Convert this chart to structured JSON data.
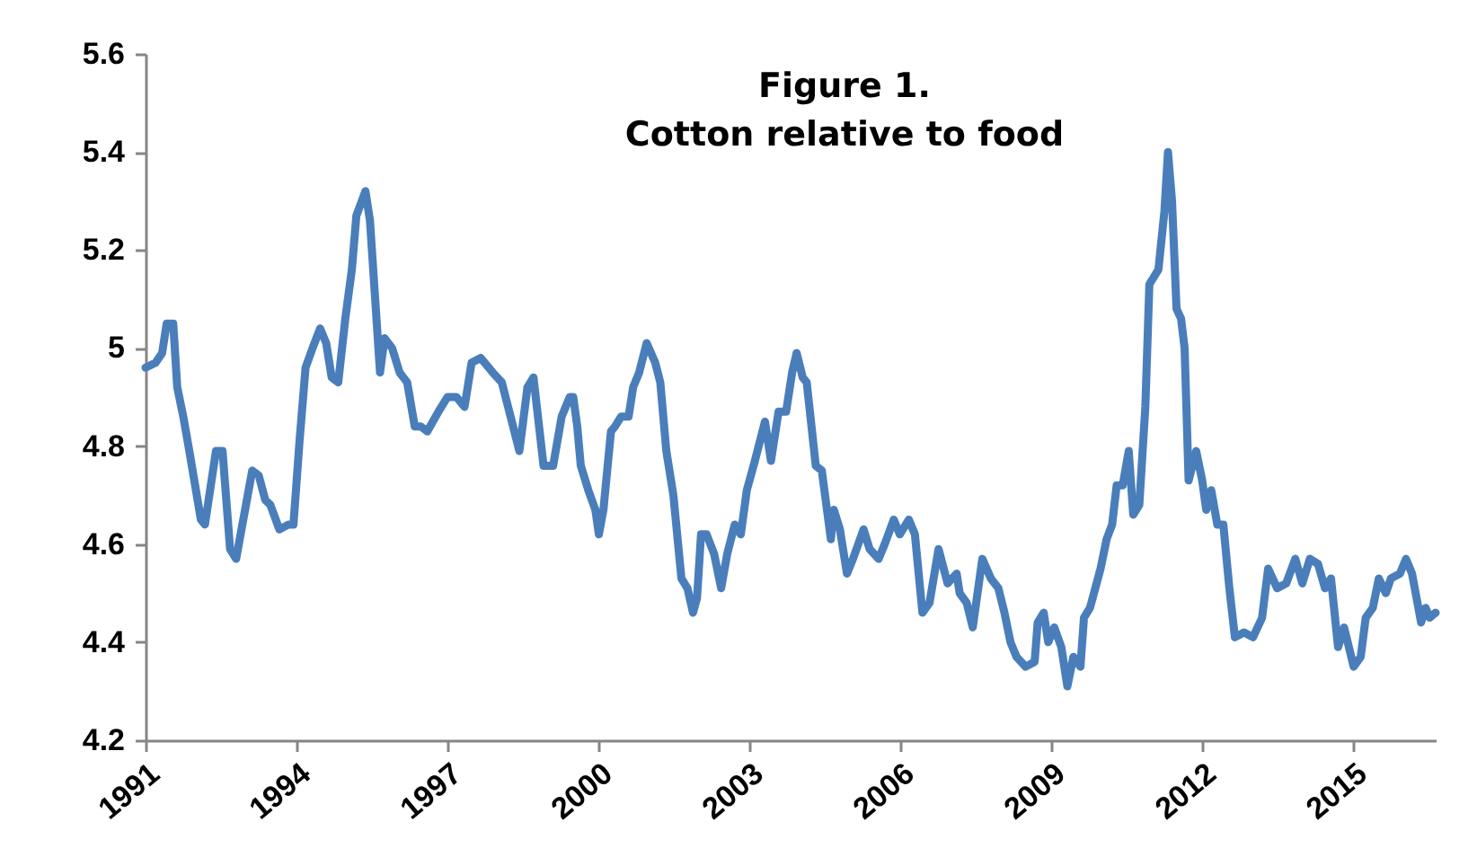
{
  "chart_data": {
    "type": "line",
    "title": [
      "Figure 1.",
      "Cotton relative to food"
    ],
    "x": [
      1991.0,
      1991.2,
      1991.33,
      1991.42,
      1991.55,
      1991.63,
      1991.75,
      1991.87,
      1992.1,
      1992.18,
      1992.4,
      1992.53,
      1992.68,
      1992.8,
      1993.12,
      1993.25,
      1993.38,
      1993.48,
      1993.66,
      1993.84,
      1993.94,
      1994.06,
      1994.18,
      1994.32,
      1994.47,
      1994.59,
      1994.7,
      1994.83,
      1994.97,
      1995.1,
      1995.19,
      1995.37,
      1995.46,
      1995.57,
      1995.66,
      1995.75,
      1995.9,
      1996.05,
      1996.2,
      1996.35,
      1996.47,
      1996.6,
      1996.82,
      1997.0,
      1997.18,
      1997.34,
      1997.48,
      1997.66,
      1997.9,
      1998.08,
      1998.23,
      1998.43,
      1998.59,
      1998.71,
      1998.91,
      1999.1,
      1999.27,
      1999.43,
      1999.5,
      1999.58,
      1999.65,
      1999.8,
      1999.94,
      2000.01,
      2000.1,
      2000.25,
      2000.33,
      2000.45,
      2000.6,
      2000.69,
      2000.81,
      2000.96,
      2001.13,
      2001.23,
      2001.35,
      2001.49,
      2001.65,
      2001.77,
      2001.88,
      2001.96,
      2002.04,
      2002.15,
      2002.3,
      2002.44,
      2002.56,
      2002.71,
      2002.83,
      2002.95,
      2003.11,
      2003.31,
      2003.43,
      2003.58,
      2003.73,
      2003.85,
      2003.94,
      2004.06,
      2004.14,
      2004.32,
      2004.44,
      2004.62,
      2004.68,
      2004.8,
      2004.94,
      2005.06,
      2005.27,
      2005.39,
      2005.57,
      2005.69,
      2005.87,
      2005.99,
      2006.17,
      2006.29,
      2006.44,
      2006.58,
      2006.76,
      2006.94,
      2007.12,
      2007.18,
      2007.32,
      2007.44,
      2007.63,
      2007.8,
      2007.95,
      2008.07,
      2008.19,
      2008.31,
      2008.49,
      2008.67,
      2008.73,
      2008.85,
      2008.94,
      2009.06,
      2009.2,
      2009.32,
      2009.44,
      2009.58,
      2009.65,
      2009.77,
      2009.98,
      2010.1,
      2010.21,
      2010.3,
      2010.42,
      2010.54,
      2010.63,
      2010.75,
      2010.87,
      2010.95,
      2011.13,
      2011.25,
      2011.32,
      2011.4,
      2011.49,
      2011.58,
      2011.65,
      2011.73,
      2011.88,
      2012.0,
      2012.08,
      2012.18,
      2012.3,
      2012.42,
      2012.54,
      2012.65,
      2012.83,
      2013.01,
      2013.19,
      2013.31,
      2013.49,
      2013.67,
      2013.85,
      2013.99,
      2014.14,
      2014.3,
      2014.44,
      2014.56,
      2014.7,
      2014.82,
      2015.01,
      2015.15,
      2015.25,
      2015.39,
      2015.51,
      2015.65,
      2015.75,
      2015.93,
      2016.05,
      2016.17,
      2016.35,
      2016.44,
      2016.52,
      2016.64
    ],
    "series": [
      {
        "color": "#4a7ebb",
        "values": [
          4.96,
          4.97,
          4.99,
          5.05,
          5.05,
          4.92,
          4.86,
          4.79,
          4.65,
          4.64,
          4.79,
          4.79,
          4.59,
          4.57,
          4.75,
          4.74,
          4.69,
          4.68,
          4.63,
          4.64,
          4.64,
          4.81,
          4.96,
          5.0,
          5.04,
          5.01,
          4.94,
          4.93,
          5.06,
          5.16,
          5.27,
          5.32,
          5.26,
          5.09,
          4.95,
          5.02,
          5.0,
          4.95,
          4.93,
          4.84,
          4.84,
          4.83,
          4.87,
          4.9,
          4.9,
          4.88,
          4.97,
          4.98,
          4.95,
          4.93,
          4.87,
          4.79,
          4.92,
          4.94,
          4.76,
          4.76,
          4.86,
          4.9,
          4.9,
          4.84,
          4.76,
          4.71,
          4.67,
          4.62,
          4.67,
          4.83,
          4.84,
          4.86,
          4.86,
          4.92,
          4.95,
          5.01,
          4.97,
          4.93,
          4.79,
          4.7,
          4.53,
          4.51,
          4.46,
          4.49,
          4.62,
          4.62,
          4.58,
          4.51,
          4.58,
          4.64,
          4.62,
          4.71,
          4.77,
          4.85,
          4.77,
          4.87,
          4.87,
          4.95,
          4.99,
          4.94,
          4.93,
          4.76,
          4.75,
          4.61,
          4.67,
          4.63,
          4.54,
          4.57,
          4.63,
          4.59,
          4.57,
          4.6,
          4.65,
          4.62,
          4.65,
          4.62,
          4.46,
          4.48,
          4.59,
          4.52,
          4.54,
          4.5,
          4.48,
          4.43,
          4.57,
          4.53,
          4.51,
          4.46,
          4.4,
          4.37,
          4.35,
          4.36,
          4.44,
          4.46,
          4.4,
          4.43,
          4.39,
          4.31,
          4.37,
          4.35,
          4.45,
          4.47,
          4.55,
          4.61,
          4.64,
          4.72,
          4.72,
          4.79,
          4.66,
          4.68,
          4.88,
          5.13,
          5.16,
          5.28,
          5.4,
          5.3,
          5.08,
          5.06,
          5.0,
          4.73,
          4.79,
          4.73,
          4.67,
          4.71,
          4.64,
          4.64,
          4.51,
          4.41,
          4.42,
          4.41,
          4.45,
          4.55,
          4.51,
          4.52,
          4.57,
          4.52,
          4.57,
          4.56,
          4.51,
          4.53,
          4.39,
          4.43,
          4.35,
          4.37,
          4.45,
          4.47,
          4.53,
          4.5,
          4.53,
          4.54,
          4.57,
          4.54,
          4.44,
          4.47,
          4.45,
          4.46
        ]
      }
    ],
    "xlim": [
      1991,
      2016.64
    ],
    "xticks": [
      1991,
      1994,
      1997,
      2000,
      2003,
      2006,
      2009,
      2012,
      2015
    ],
    "ylim": [
      4.2,
      5.6
    ],
    "yticks": [
      4.2,
      4.4,
      4.6,
      4.8,
      5,
      5.2,
      5.4,
      5.6
    ],
    "grid": false
  }
}
